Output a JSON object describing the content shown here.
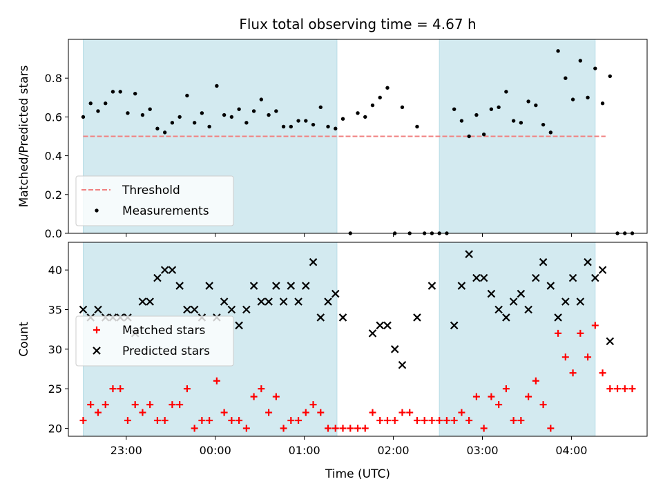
{
  "chart_data": {
    "type": "scatter",
    "title": "Flux total observing time = 4.67 h",
    "xlabel": "Time (UTC)",
    "x_unit": "hours UTC",
    "xlim": [
      "22:21",
      "04:51"
    ],
    "xticks": [
      {
        "x": "23:00",
        "label": "23:00"
      },
      {
        "x": "00:00",
        "label": "00:00"
      },
      {
        "x": "01:00",
        "label": "01:00"
      },
      {
        "x": "02:00",
        "label": "02:00"
      },
      {
        "x": "03:00",
        "label": "03:00"
      },
      {
        "x": "04:00",
        "label": "04:00"
      }
    ],
    "shaded_intervals": [
      [
        "22:31",
        "01:22"
      ],
      [
        "02:31",
        "04:16"
      ]
    ],
    "shade_color": "#d3eaf0",
    "panels": [
      {
        "ylabel": "Matched/Predicted stars",
        "ylim": [
          0,
          1.0
        ],
        "yticks": [
          0.0,
          0.2,
          0.4,
          0.6,
          0.8
        ],
        "yticklabels": [
          "0.0",
          "0.2",
          "0.4",
          "0.6",
          "0.8"
        ],
        "legend_position": "lower-left",
        "lines": [
          {
            "name": "Threshold",
            "style": "dashed",
            "color": "#f08080",
            "x": [
              "22:31",
              "04:23"
            ],
            "y": [
              0.5,
              0.5
            ]
          }
        ],
        "series": [
          {
            "name": "Measurements",
            "marker": "dot",
            "color": "#000000",
            "points": [
              [
                "22:31",
                0.6
              ],
              [
                "22:36",
                0.67
              ],
              [
                "22:41",
                0.63
              ],
              [
                "22:46",
                0.67
              ],
              [
                "22:51",
                0.73
              ],
              [
                "22:56",
                0.73
              ],
              [
                "23:01",
                0.62
              ],
              [
                "23:06",
                0.72
              ],
              [
                "23:11",
                0.61
              ],
              [
                "23:16",
                0.64
              ],
              [
                "23:21",
                0.54
              ],
              [
                "23:26",
                0.52
              ],
              [
                "23:31",
                0.57
              ],
              [
                "23:36",
                0.6
              ],
              [
                "23:41",
                0.71
              ],
              [
                "23:46",
                0.57
              ],
              [
                "23:51",
                0.62
              ],
              [
                "23:56",
                0.55
              ],
              [
                "00:01",
                0.76
              ],
              [
                "00:06",
                0.61
              ],
              [
                "00:11",
                0.6
              ],
              [
                "00:16",
                0.64
              ],
              [
                "00:21",
                0.57
              ],
              [
                "00:26",
                0.63
              ],
              [
                "00:31",
                0.69
              ],
              [
                "00:36",
                0.61
              ],
              [
                "00:41",
                0.63
              ],
              [
                "00:46",
                0.55
              ],
              [
                "00:51",
                0.55
              ],
              [
                "00:56",
                0.58
              ],
              [
                "01:01",
                0.58
              ],
              [
                "01:06",
                0.56
              ],
              [
                "01:11",
                0.65
              ],
              [
                "01:16",
                0.55
              ],
              [
                "01:21",
                0.54
              ],
              [
                "01:26",
                0.59
              ],
              [
                "01:31",
                0.0
              ],
              [
                "01:36",
                0.62
              ],
              [
                "01:41",
                0.6
              ],
              [
                "01:46",
                0.66
              ],
              [
                "01:51",
                0.7
              ],
              [
                "01:56",
                0.75
              ],
              [
                "02:01",
                0.0
              ],
              [
                "02:06",
                0.65
              ],
              [
                "02:11",
                0.0
              ],
              [
                "02:16",
                0.55
              ],
              [
                "02:21",
                0.0
              ],
              [
                "02:26",
                0.0
              ],
              [
                "02:31",
                0.0
              ],
              [
                "02:36",
                0.0
              ],
              [
                "02:41",
                0.64
              ],
              [
                "02:46",
                0.58
              ],
              [
                "02:51",
                0.5
              ],
              [
                "02:56",
                0.61
              ],
              [
                "03:01",
                0.51
              ],
              [
                "03:06",
                0.64
              ],
              [
                "03:11",
                0.65
              ],
              [
                "03:16",
                0.73
              ],
              [
                "03:21",
                0.58
              ],
              [
                "03:26",
                0.57
              ],
              [
                "03:31",
                0.68
              ],
              [
                "03:36",
                0.66
              ],
              [
                "03:41",
                0.56
              ],
              [
                "03:46",
                0.52
              ],
              [
                "03:51",
                0.94
              ],
              [
                "03:56",
                0.8
              ],
              [
                "04:01",
                0.69
              ],
              [
                "04:06",
                0.89
              ],
              [
                "04:11",
                0.7
              ],
              [
                "04:16",
                0.85
              ],
              [
                "04:21",
                0.67
              ],
              [
                "04:26",
                0.81
              ],
              [
                "04:31",
                0.0
              ],
              [
                "04:36",
                0.0
              ],
              [
                "04:41",
                0.0
              ]
            ]
          }
        ]
      },
      {
        "ylabel": "Count",
        "ylim": [
          19,
          43.5
        ],
        "yticks": [
          20,
          25,
          30,
          35,
          40
        ],
        "yticklabels": [
          "20",
          "25",
          "30",
          "35",
          "40"
        ],
        "legend_position": "center-left",
        "series": [
          {
            "name": "Matched stars",
            "marker": "plus",
            "color": "#ff0000",
            "points": [
              [
                "22:31",
                21
              ],
              [
                "22:36",
                23
              ],
              [
                "22:41",
                22
              ],
              [
                "22:46",
                23
              ],
              [
                "22:51",
                25
              ],
              [
                "22:56",
                25
              ],
              [
                "23:01",
                21
              ],
              [
                "23:06",
                23
              ],
              [
                "23:11",
                22
              ],
              [
                "23:16",
                23
              ],
              [
                "23:21",
                21
              ],
              [
                "23:26",
                21
              ],
              [
                "23:31",
                23
              ],
              [
                "23:36",
                23
              ],
              [
                "23:41",
                25
              ],
              [
                "23:46",
                20
              ],
              [
                "23:51",
                21
              ],
              [
                "23:56",
                21
              ],
              [
                "00:01",
                26
              ],
              [
                "00:06",
                22
              ],
              [
                "00:11",
                21
              ],
              [
                "00:16",
                21
              ],
              [
                "00:21",
                20
              ],
              [
                "00:26",
                24
              ],
              [
                "00:31",
                25
              ],
              [
                "00:36",
                22
              ],
              [
                "00:41",
                24
              ],
              [
                "00:46",
                20
              ],
              [
                "00:51",
                21
              ],
              [
                "00:56",
                21
              ],
              [
                "01:01",
                22
              ],
              [
                "01:06",
                23
              ],
              [
                "01:11",
                22
              ],
              [
                "01:16",
                20
              ],
              [
                "01:21",
                20
              ],
              [
                "01:26",
                20
              ],
              [
                "01:31",
                20
              ],
              [
                "01:36",
                20
              ],
              [
                "01:41",
                20
              ],
              [
                "01:46",
                22
              ],
              [
                "01:51",
                21
              ],
              [
                "01:56",
                21
              ],
              [
                "02:01",
                21
              ],
              [
                "02:06",
                22
              ],
              [
                "02:11",
                22
              ],
              [
                "02:16",
                21
              ],
              [
                "02:21",
                21
              ],
              [
                "02:26",
                21
              ],
              [
                "02:31",
                21
              ],
              [
                "02:36",
                21
              ],
              [
                "02:41",
                21
              ],
              [
                "02:46",
                22
              ],
              [
                "02:51",
                21
              ],
              [
                "02:56",
                24
              ],
              [
                "03:01",
                20
              ],
              [
                "03:06",
                24
              ],
              [
                "03:11",
                23
              ],
              [
                "03:16",
                25
              ],
              [
                "03:21",
                21
              ],
              [
                "03:26",
                21
              ],
              [
                "03:31",
                24
              ],
              [
                "03:36",
                26
              ],
              [
                "03:41",
                23
              ],
              [
                "03:46",
                20
              ],
              [
                "03:51",
                32
              ],
              [
                "03:56",
                29
              ],
              [
                "04:01",
                27
              ],
              [
                "04:06",
                32
              ],
              [
                "04:11",
                29
              ],
              [
                "04:16",
                33
              ],
              [
                "04:21",
                27
              ],
              [
                "04:26",
                25
              ],
              [
                "04:31",
                25
              ],
              [
                "04:36",
                25
              ],
              [
                "04:41",
                25
              ]
            ]
          },
          {
            "name": "Predicted stars",
            "marker": "x",
            "color": "#000000",
            "points": [
              [
                "22:31",
                35
              ],
              [
                "22:36",
                34
              ],
              [
                "22:41",
                35
              ],
              [
                "22:46",
                34
              ],
              [
                "22:51",
                34
              ],
              [
                "22:56",
                34
              ],
              [
                "23:01",
                34
              ],
              [
                "23:06",
                32
              ],
              [
                "23:11",
                36
              ],
              [
                "23:16",
                36
              ],
              [
                "23:21",
                39
              ],
              [
                "23:26",
                40
              ],
              [
                "23:31",
                40
              ],
              [
                "23:36",
                38
              ],
              [
                "23:41",
                35
              ],
              [
                "23:46",
                35
              ],
              [
                "23:51",
                34
              ],
              [
                "23:56",
                38
              ],
              [
                "00:01",
                34
              ],
              [
                "00:06",
                36
              ],
              [
                "00:11",
                35
              ],
              [
                "00:16",
                33
              ],
              [
                "00:21",
                35
              ],
              [
                "00:26",
                38
              ],
              [
                "00:31",
                36
              ],
              [
                "00:36",
                36
              ],
              [
                "00:41",
                38
              ],
              [
                "00:46",
                36
              ],
              [
                "00:51",
                38
              ],
              [
                "00:56",
                36
              ],
              [
                "01:01",
                38
              ],
              [
                "01:06",
                41
              ],
              [
                "01:11",
                34
              ],
              [
                "01:16",
                36
              ],
              [
                "01:21",
                37
              ],
              [
                "01:26",
                34
              ],
              [
                "01:46",
                32
              ],
              [
                "01:51",
                33
              ],
              [
                "01:56",
                33
              ],
              [
                "02:01",
                30
              ],
              [
                "02:06",
                28
              ],
              [
                "02:16",
                34
              ],
              [
                "02:26",
                38
              ],
              [
                "02:41",
                33
              ],
              [
                "02:46",
                38
              ],
              [
                "02:51",
                42
              ],
              [
                "02:56",
                39
              ],
              [
                "03:01",
                39
              ],
              [
                "03:06",
                37
              ],
              [
                "03:11",
                35
              ],
              [
                "03:16",
                34
              ],
              [
                "03:21",
                36
              ],
              [
                "03:26",
                37
              ],
              [
                "03:31",
                35
              ],
              [
                "03:36",
                39
              ],
              [
                "03:41",
                41
              ],
              [
                "03:46",
                38
              ],
              [
                "03:51",
                34
              ],
              [
                "03:56",
                36
              ],
              [
                "04:01",
                39
              ],
              [
                "04:06",
                36
              ],
              [
                "04:11",
                41
              ],
              [
                "04:16",
                39
              ],
              [
                "04:21",
                40
              ],
              [
                "04:26",
                31
              ]
            ]
          }
        ]
      }
    ]
  }
}
